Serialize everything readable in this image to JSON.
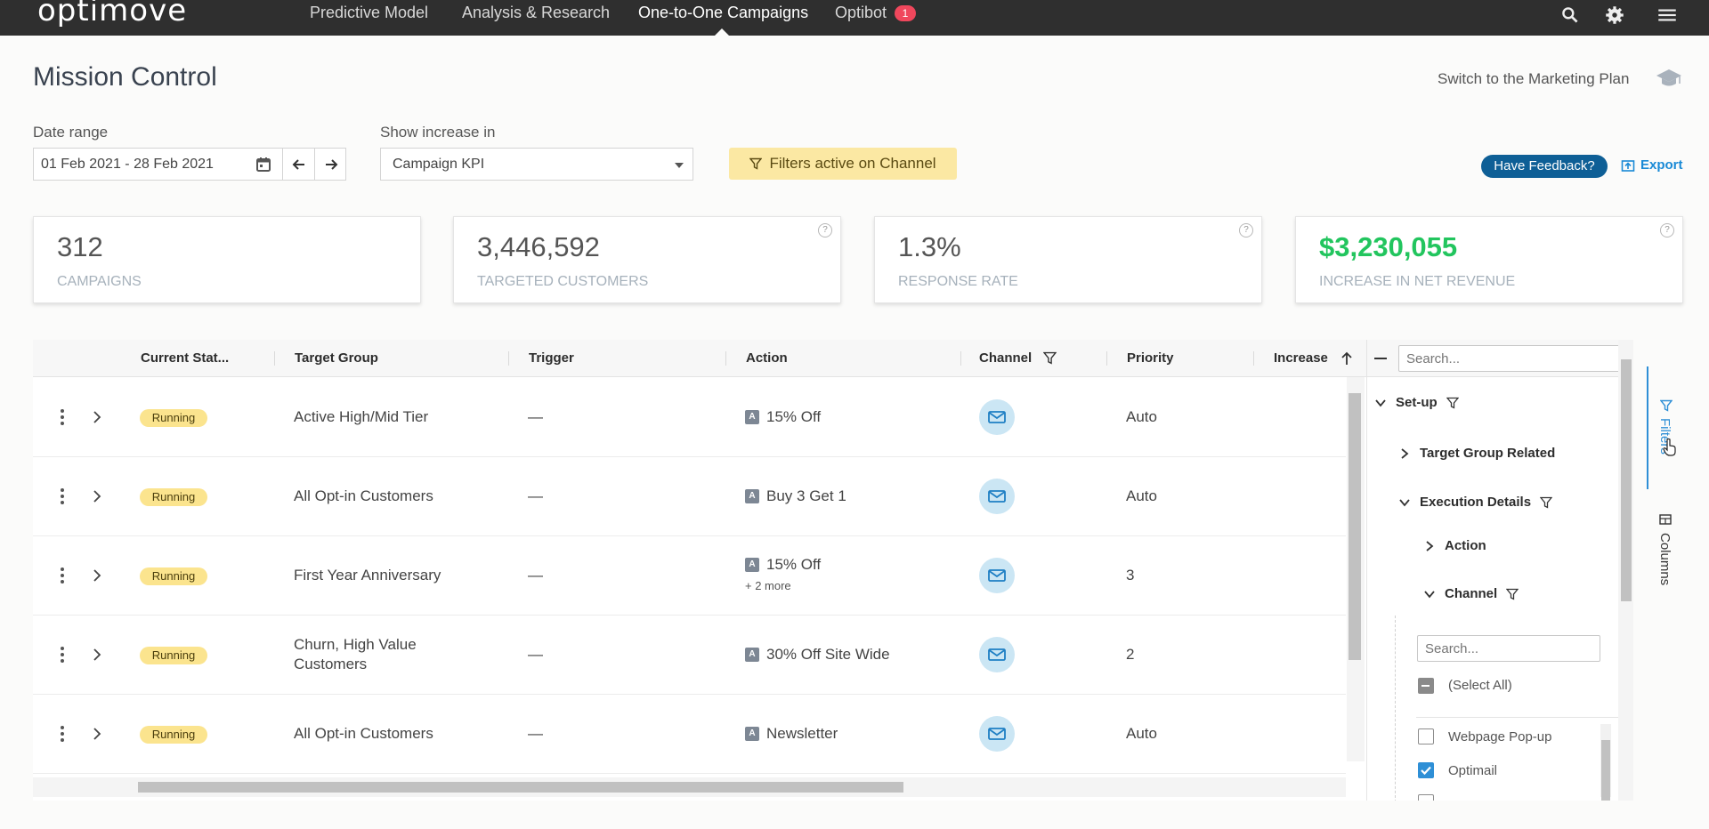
{
  "nav": {
    "logo": "optimove",
    "links": [
      "Predictive Model",
      "Analysis & Research",
      "One-to-One Campaigns",
      "Optibot"
    ],
    "optibot_badge": "1"
  },
  "header": {
    "title": "Mission Control",
    "switch_link": "Switch to the Marketing Plan"
  },
  "filters": {
    "date_label": "Date range",
    "date_value": "01 Feb 2021 - 28 Feb 2021",
    "increase_label": "Show increase in",
    "increase_value": "Campaign KPI",
    "chip": "Filters active on Channel",
    "feedback": "Have Feedback?",
    "export": "Export"
  },
  "kpis": [
    {
      "value": "312",
      "label": "CAMPAIGNS"
    },
    {
      "value": "3,446,592",
      "label": "TARGETED CUSTOMERS"
    },
    {
      "value": "1.3%",
      "label": "RESPONSE RATE"
    },
    {
      "value": "$3,230,055",
      "label": "INCREASE IN NET REVENUE"
    }
  ],
  "table": {
    "columns": [
      "Current Stat...",
      "Target Group",
      "Trigger",
      "Action",
      "Channel",
      "Priority",
      "Increase"
    ],
    "rows": [
      {
        "status": "Running",
        "target": "Active High/Mid Tier",
        "target2": "",
        "trigger": "—",
        "action": "15% Off",
        "action_more": "",
        "priority": "Auto"
      },
      {
        "status": "Running",
        "target": "All Opt-in Customers",
        "target2": "",
        "trigger": "—",
        "action": "Buy 3 Get 1",
        "action_more": "",
        "priority": "Auto"
      },
      {
        "status": "Running",
        "target": "First Year Anniversary",
        "target2": "",
        "trigger": "—",
        "action": "15% Off",
        "action_more": "+ 2 more",
        "priority": "3"
      },
      {
        "status": "Running",
        "target": "Churn, High Value",
        "target2": "Customers",
        "trigger": "—",
        "action": "30% Off Site Wide",
        "action_more": "",
        "priority": "2"
      },
      {
        "status": "Running",
        "target": "All Opt-in Customers",
        "target2": "",
        "trigger": "—",
        "action": "Newsletter",
        "action_more": "",
        "priority": "Auto"
      }
    ]
  },
  "panel": {
    "search_placeholder": "Search...",
    "setup": "Set-up",
    "target_group_related": "Target Group Related",
    "execution_details": "Execution Details",
    "action": "Action",
    "channel": "Channel",
    "channel_search_placeholder": "Search...",
    "select_all": "(Select All)",
    "options": [
      {
        "label": "Webpage Pop-up",
        "checked": false
      },
      {
        "label": "Optimail",
        "checked": true
      }
    ]
  },
  "sidetabs": {
    "filters": "Filters",
    "columns": "Columns"
  },
  "colors": {
    "nav_bg": "#2f2f2f",
    "chip_bg": "#fbe8a3",
    "status_bg": "#fbe48e",
    "accent": "#2e8fd6",
    "revenue": "#22c55e"
  }
}
